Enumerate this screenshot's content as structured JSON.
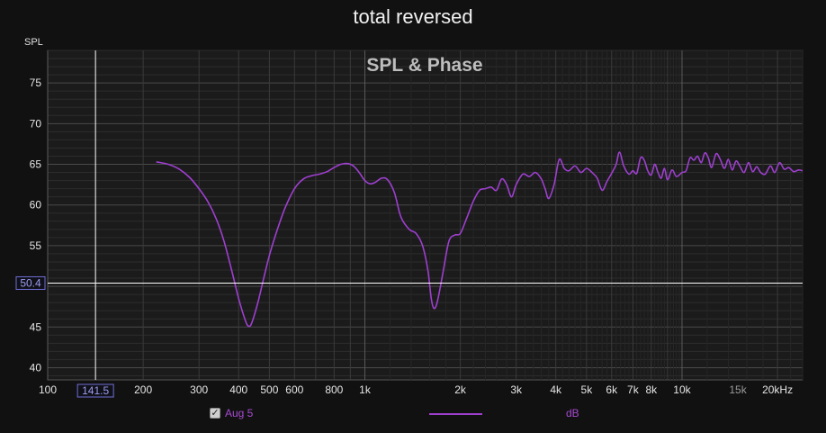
{
  "window": {
    "title": "total reversed"
  },
  "chart_data": {
    "type": "line",
    "title": "SPL & Phase",
    "ylabel": "SPL",
    "xlabel": "",
    "xscale": "log",
    "xlim": [
      100,
      24000
    ],
    "ylim": [
      38.5,
      79
    ],
    "grid": true,
    "x_ticks": [
      {
        "value": 100,
        "label": "100"
      },
      {
        "value": 200,
        "label": "200"
      },
      {
        "value": 300,
        "label": "300"
      },
      {
        "value": 400,
        "label": "400"
      },
      {
        "value": 500,
        "label": "500"
      },
      {
        "value": 600,
        "label": "600"
      },
      {
        "value": 800,
        "label": "800"
      },
      {
        "value": 1000,
        "label": "1k"
      },
      {
        "value": 2000,
        "label": "2k"
      },
      {
        "value": 3000,
        "label": "3k"
      },
      {
        "value": 4000,
        "label": "4k"
      },
      {
        "value": 5000,
        "label": "5k"
      },
      {
        "value": 6000,
        "label": "6k"
      },
      {
        "value": 7000,
        "label": "7k"
      },
      {
        "value": 8000,
        "label": "8k"
      },
      {
        "value": 10000,
        "label": "10k"
      },
      {
        "value": 15000,
        "label": "15k"
      },
      {
        "value": 20000,
        "label": "20kHz"
      }
    ],
    "y_ticks": [
      {
        "value": 40,
        "label": "40"
      },
      {
        "value": 45,
        "label": "45"
      },
      {
        "value": 50,
        "label": "50"
      },
      {
        "value": 55,
        "label": "55"
      },
      {
        "value": 60,
        "label": "60"
      },
      {
        "value": 65,
        "label": "65"
      },
      {
        "value": 70,
        "label": "70"
      },
      {
        "value": 75,
        "label": "75"
      }
    ],
    "cursor": {
      "x": 141.5,
      "x_label": "141.5",
      "y": 50.4,
      "y_label": "50.4"
    },
    "series": [
      {
        "name": "Aug 5",
        "unit": "dB",
        "color": "#9e3fcf",
        "points": [
          [
            220,
            65.3
          ],
          [
            240,
            65.0
          ],
          [
            260,
            64.4
          ],
          [
            280,
            63.4
          ],
          [
            300,
            62.0
          ],
          [
            320,
            60.4
          ],
          [
            340,
            58.3
          ],
          [
            360,
            55.5
          ],
          [
            380,
            52.0
          ],
          [
            400,
            48.5
          ],
          [
            420,
            45.8
          ],
          [
            430,
            45.1
          ],
          [
            440,
            45.5
          ],
          [
            460,
            48.0
          ],
          [
            480,
            51.0
          ],
          [
            500,
            53.8
          ],
          [
            530,
            57.0
          ],
          [
            560,
            59.6
          ],
          [
            600,
            62.0
          ],
          [
            640,
            63.2
          ],
          [
            680,
            63.6
          ],
          [
            720,
            63.8
          ],
          [
            760,
            64.1
          ],
          [
            800,
            64.6
          ],
          [
            840,
            65.0
          ],
          [
            880,
            65.1
          ],
          [
            920,
            64.8
          ],
          [
            960,
            64.0
          ],
          [
            1000,
            63.0
          ],
          [
            1040,
            62.6
          ],
          [
            1080,
            62.8
          ],
          [
            1130,
            63.3
          ],
          [
            1180,
            63.1
          ],
          [
            1240,
            61.5
          ],
          [
            1300,
            58.5
          ],
          [
            1380,
            57.0
          ],
          [
            1450,
            56.5
          ],
          [
            1520,
            55.0
          ],
          [
            1580,
            52.0
          ],
          [
            1620,
            48.5
          ],
          [
            1650,
            47.3
          ],
          [
            1690,
            48.0
          ],
          [
            1760,
            51.5
          ],
          [
            1840,
            55.5
          ],
          [
            1920,
            56.3
          ],
          [
            2000,
            56.5
          ],
          [
            2100,
            58.5
          ],
          [
            2200,
            60.5
          ],
          [
            2300,
            61.8
          ],
          [
            2400,
            62.0
          ],
          [
            2500,
            62.2
          ],
          [
            2600,
            61.8
          ],
          [
            2700,
            63.2
          ],
          [
            2800,
            62.5
          ],
          [
            2900,
            61.0
          ],
          [
            3000,
            62.5
          ],
          [
            3150,
            63.8
          ],
          [
            3300,
            63.5
          ],
          [
            3450,
            64.0
          ],
          [
            3600,
            63.2
          ],
          [
            3700,
            62.0
          ],
          [
            3800,
            60.8
          ],
          [
            3950,
            62.5
          ],
          [
            4100,
            65.6
          ],
          [
            4250,
            64.5
          ],
          [
            4400,
            64.2
          ],
          [
            4600,
            64.8
          ],
          [
            4800,
            64.0
          ],
          [
            5000,
            64.5
          ],
          [
            5200,
            64.0
          ],
          [
            5400,
            63.3
          ],
          [
            5600,
            61.8
          ],
          [
            5800,
            62.9
          ],
          [
            6000,
            63.9
          ],
          [
            6200,
            65.0
          ],
          [
            6350,
            66.5
          ],
          [
            6550,
            64.8
          ],
          [
            6800,
            63.8
          ],
          [
            7000,
            64.2
          ],
          [
            7200,
            63.9
          ],
          [
            7400,
            65.8
          ],
          [
            7600,
            65.5
          ],
          [
            7800,
            64.2
          ],
          [
            8000,
            63.7
          ],
          [
            8200,
            65.0
          ],
          [
            8400,
            64.0
          ],
          [
            8600,
            63.3
          ],
          [
            8800,
            64.5
          ],
          [
            9000,
            63.1
          ],
          [
            9300,
            64.3
          ],
          [
            9600,
            63.5
          ],
          [
            10000,
            64.0
          ],
          [
            10300,
            64.2
          ],
          [
            10600,
            65.8
          ],
          [
            10900,
            65.5
          ],
          [
            11200,
            66.0
          ],
          [
            11500,
            65.2
          ],
          [
            11800,
            66.4
          ],
          [
            12100,
            65.8
          ],
          [
            12400,
            64.6
          ],
          [
            12800,
            66.3
          ],
          [
            13200,
            65.6
          ],
          [
            13600,
            64.5
          ],
          [
            14000,
            65.6
          ],
          [
            14400,
            64.3
          ],
          [
            14800,
            65.4
          ],
          [
            15200,
            64.8
          ],
          [
            15700,
            64.0
          ],
          [
            16200,
            65.2
          ],
          [
            16700,
            64.1
          ],
          [
            17200,
            64.7
          ],
          [
            17700,
            64.0
          ],
          [
            18300,
            63.8
          ],
          [
            19000,
            64.8
          ],
          [
            19600,
            64.0
          ],
          [
            20300,
            65.2
          ],
          [
            21000,
            64.4
          ],
          [
            21700,
            64.6
          ],
          [
            22500,
            64.1
          ],
          [
            23300,
            64.3
          ],
          [
            24000,
            64.2
          ]
        ]
      }
    ]
  },
  "legend": {
    "checked": true,
    "series_name": "Aug 5",
    "unit": "dB"
  }
}
